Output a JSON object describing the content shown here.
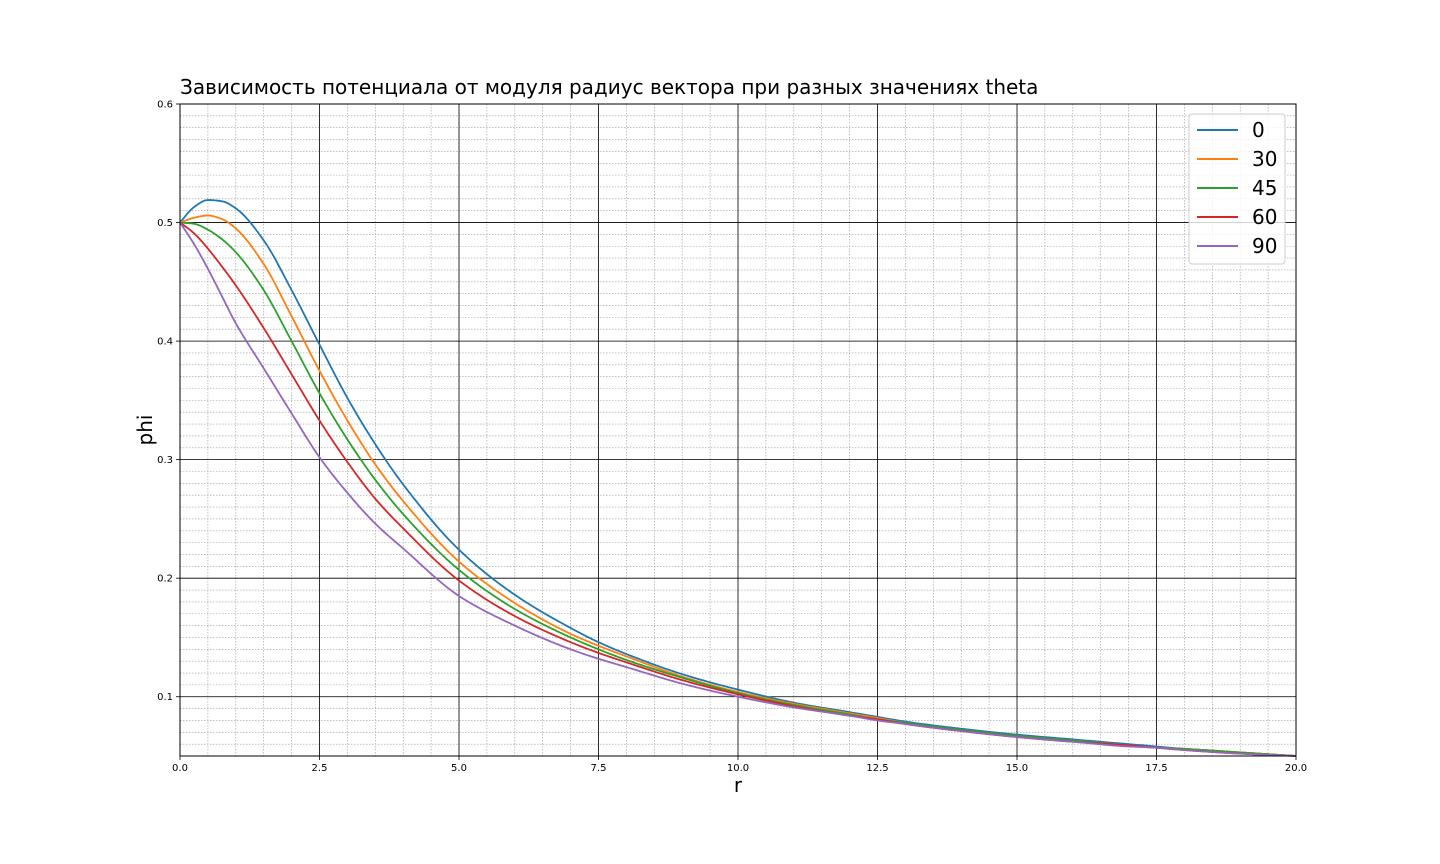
{
  "chart_data": {
    "type": "line",
    "title": "Зависимость потенциала от модуля радиус вектора при разных значениях theta",
    "xlabel": "r",
    "ylabel": "phi",
    "xlim": [
      0,
      20
    ],
    "ylim": [
      0.05,
      0.6
    ],
    "x_ticks": [
      "0.0",
      "2.5",
      "5.0",
      "7.5",
      "10.0",
      "12.5",
      "15.0",
      "17.5",
      "20.0"
    ],
    "y_ticks": [
      "0.1",
      "0.2",
      "0.3",
      "0.4",
      "0.5",
      "0.6"
    ],
    "grid": "major and minor",
    "legend_position": "top-right",
    "x": [
      0,
      0.25,
      0.5,
      0.75,
      1,
      1.5,
      2,
      2.5,
      3,
      3.5,
      4,
      5,
      6,
      7,
      7.5,
      8,
      9,
      10,
      11,
      12,
      12.5,
      13,
      14,
      15,
      16,
      17,
      17.5,
      18,
      19,
      20
    ],
    "series": [
      {
        "name": "0",
        "color": "#1f77b4",
        "values": [
          0.5,
          0.513,
          0.519,
          0.518,
          0.512,
          0.485,
          0.443,
          0.397,
          0.352,
          0.313,
          0.279,
          0.224,
          0.186,
          0.158,
          0.146,
          0.136,
          0.119,
          0.106,
          0.095,
          0.087,
          0.083,
          0.079,
          0.073,
          0.068,
          0.064,
          0.06,
          0.058,
          0.056,
          0.053,
          0.05
        ]
      },
      {
        "name": "30",
        "color": "#ff7f0e",
        "values": [
          0.5,
          0.504,
          0.506,
          0.503,
          0.495,
          0.465,
          0.421,
          0.375,
          0.333,
          0.296,
          0.265,
          0.214,
          0.179,
          0.153,
          0.143,
          0.134,
          0.117,
          0.104,
          0.094,
          0.086,
          0.082,
          0.078,
          0.072,
          0.067,
          0.063,
          0.059,
          0.057,
          0.056,
          0.053,
          0.05
        ]
      },
      {
        "name": "45",
        "color": "#2ca02c",
        "values": [
          0.5,
          0.499,
          0.494,
          0.486,
          0.475,
          0.443,
          0.4,
          0.356,
          0.317,
          0.283,
          0.254,
          0.207,
          0.174,
          0.15,
          0.14,
          0.131,
          0.116,
          0.103,
          0.093,
          0.085,
          0.081,
          0.078,
          0.072,
          0.067,
          0.063,
          0.059,
          0.057,
          0.056,
          0.053,
          0.05
        ]
      },
      {
        "name": "60",
        "color": "#d62728",
        "values": [
          0.5,
          0.491,
          0.478,
          0.463,
          0.447,
          0.411,
          0.372,
          0.333,
          0.298,
          0.267,
          0.242,
          0.198,
          0.168,
          0.146,
          0.137,
          0.129,
          0.114,
          0.102,
          0.092,
          0.084,
          0.081,
          0.077,
          0.071,
          0.066,
          0.062,
          0.059,
          0.057,
          0.055,
          0.052,
          0.05
        ]
      },
      {
        "name": "90",
        "color": "#9467bd",
        "values": [
          0.5,
          0.482,
          0.461,
          0.438,
          0.415,
          0.377,
          0.339,
          0.302,
          0.272,
          0.246,
          0.225,
          0.185,
          0.16,
          0.14,
          0.132,
          0.125,
          0.111,
          0.1,
          0.091,
          0.084,
          0.08,
          0.077,
          0.071,
          0.066,
          0.062,
          0.058,
          0.057,
          0.055,
          0.052,
          0.05
        ]
      }
    ]
  }
}
